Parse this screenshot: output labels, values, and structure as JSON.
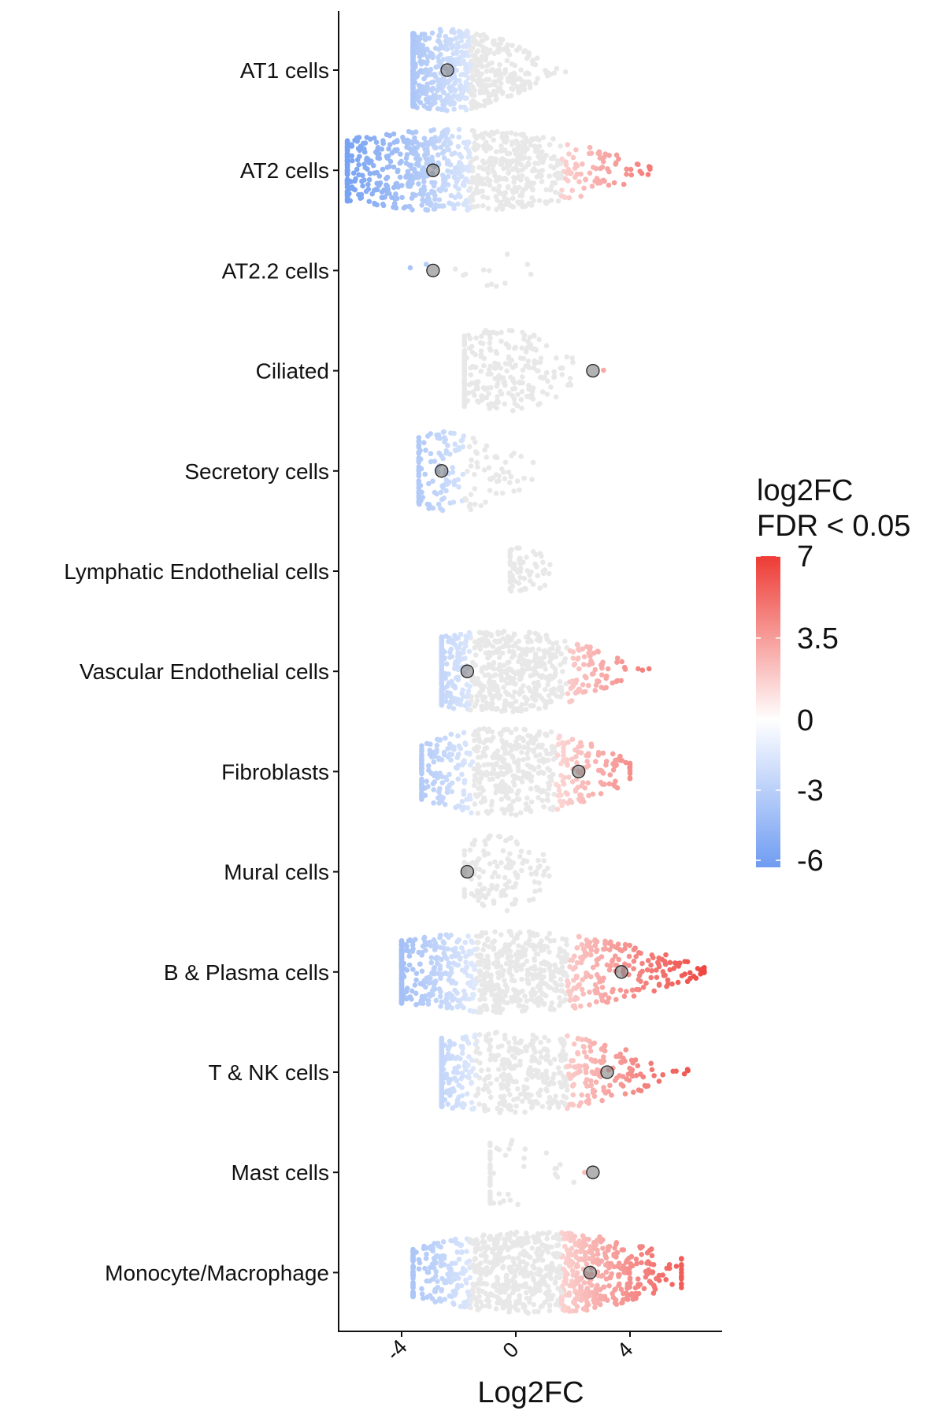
{
  "chart_data": {
    "type": "beeswarm",
    "xlabel": "Log2FC",
    "ylabel": "",
    "xlim": [
      -6.3,
      7.0
    ],
    "x_ticks": [
      {
        "value": -4,
        "label": "-4"
      },
      {
        "value": 0,
        "label": "0"
      },
      {
        "value": 4,
        "label": "4"
      }
    ],
    "categories": [
      "AT1 cells",
      "AT2 cells",
      "AT2.2 cells",
      "Ciliated",
      "Secretory cells",
      "Lymphatic Endothelial cells",
      "Vascular Endothelial cells",
      "Fibroblasts",
      "Mural cells",
      "B & Plasma cells",
      "T & NK cells",
      "Mast cells",
      "Monocyte/Macrophage"
    ],
    "series": [
      {
        "category": "AT1 cells",
        "median_log2fc": -2.4,
        "min": -3.6,
        "max": 1.9,
        "peak": -2.4
      },
      {
        "category": "AT2 cells",
        "median_log2fc": -2.9,
        "min": -5.9,
        "max": 4.7,
        "peak": -2.2
      },
      {
        "category": "AT2.2 cells",
        "median_log2fc": -2.9,
        "min": -3.7,
        "max": 0.6,
        "peak": -1.5
      },
      {
        "category": "Ciliated",
        "median_log2fc": 2.7,
        "min": -1.8,
        "max": 3.1,
        "peak": -0.6
      },
      {
        "category": "Secretory cells",
        "median_log2fc": -2.6,
        "min": -3.4,
        "max": 1.4,
        "peak": -2.2
      },
      {
        "category": "Lymphatic Endothelial cells",
        "median_log2fc": null,
        "min": -0.2,
        "max": 1.8,
        "peak": 0.2
      },
      {
        "category": "Vascular Endothelial cells",
        "median_log2fc": -1.7,
        "min": -2.6,
        "max": 4.7,
        "peak": -0.6
      },
      {
        "category": "Fibroblasts",
        "median_log2fc": 2.2,
        "min": -3.3,
        "max": 4.0,
        "peak": -0.3
      },
      {
        "category": "Mural cells",
        "median_log2fc": -1.7,
        "min": -1.8,
        "max": 1.3,
        "peak": -0.5
      },
      {
        "category": "B & Plasma cells",
        "median_log2fc": 3.7,
        "min": -4.0,
        "max": 6.6,
        "peak": -0.4
      },
      {
        "category": "T & NK cells",
        "median_log2fc": 3.2,
        "min": -2.6,
        "max": 6.3,
        "peak": -0.2
      },
      {
        "category": "Mast cells",
        "median_log2fc": 2.7,
        "min": -0.9,
        "max": 3.1,
        "peak": -0.3
      },
      {
        "category": "Monocyte/Macrophage",
        "median_log2fc": 2.6,
        "min": -3.6,
        "max": 5.8,
        "peak": 0.6
      }
    ],
    "colorbar": {
      "title_lines": [
        "log2FC",
        "FDR < 0.05"
      ],
      "ticks": [
        {
          "value": 7,
          "label": "7"
        },
        {
          "value": 3.5,
          "label": "3.5"
        },
        {
          "value": 0,
          "label": "0"
        },
        {
          "value": -3,
          "label": "-3"
        },
        {
          "value": -6,
          "label": "-6"
        }
      ],
      "min": -6.3,
      "max": 7,
      "low_color": "#6f9cf2",
      "mid_color": "#ffffff",
      "high_color": "#ee3b35"
    },
    "non_significant_color": "#e8e8e8",
    "median_marker_color": "#7f7f7f",
    "grid": false,
    "legend_position": "right"
  }
}
